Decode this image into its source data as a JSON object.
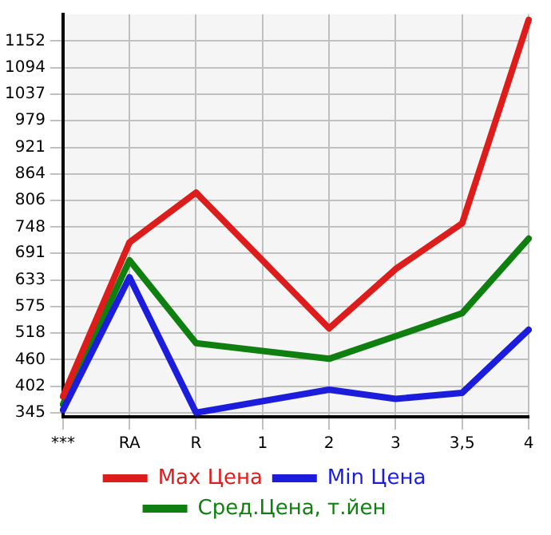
{
  "chart_data": {
    "type": "line",
    "categories": [
      "***",
      "RA",
      "R",
      "1",
      "2",
      "3",
      "3,5",
      "4"
    ],
    "series": [
      {
        "name": "Max Цена",
        "color": "#dd1c1c",
        "values": [
          380,
          715,
          823,
          null,
          528,
          657,
          756,
          1198
        ]
      },
      {
        "name": "Min Цена",
        "color": "#1c1cdd",
        "values": [
          351,
          639,
          345,
          null,
          395,
          375,
          388,
          525
        ]
      },
      {
        "name": "Сред.Цена, т.йен",
        "color": "#0f800f",
        "values": [
          363,
          676,
          496,
          null,
          462,
          511,
          561,
          723
        ]
      }
    ],
    "ylim": [
      336,
      1210
    ],
    "yticks": [
      345,
      402,
      460,
      518,
      575,
      633,
      691,
      748,
      806,
      864,
      921,
      979,
      1037,
      1094,
      1152
    ],
    "grid": true,
    "legend": "bottom",
    "marker": "none"
  }
}
